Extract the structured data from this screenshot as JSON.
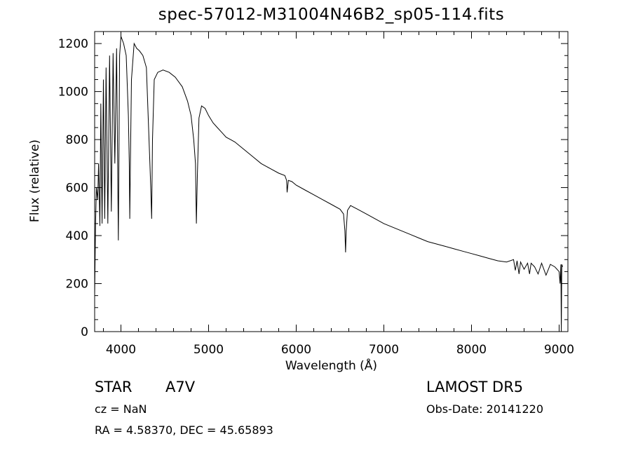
{
  "chart_data": {
    "type": "line",
    "title": "spec-57012-M31004N46B2_sp05-114.fits",
    "xlabel": "Wavelength (Å)",
    "ylabel": "Flux (relative)",
    "xlim": [
      3700,
      9100
    ],
    "ylim": [
      0,
      1250
    ],
    "xticks": [
      4000,
      5000,
      6000,
      7000,
      8000,
      9000
    ],
    "yticks": [
      0,
      200,
      400,
      600,
      800,
      1000,
      1200
    ],
    "xtick_labels": [
      "4000",
      "5000",
      "6000",
      "7000",
      "8000",
      "9000"
    ],
    "ytick_labels": [
      "0",
      "200",
      "400",
      "600",
      "800",
      "1000",
      "1200"
    ],
    "grid": false,
    "color": "#000000",
    "series": [
      {
        "x": [
          3700,
          3710,
          3720,
          3735,
          3745,
          3760,
          3770,
          3785,
          3800,
          3815,
          3830,
          3850,
          3870,
          3890,
          3910,
          3930,
          3950,
          3970,
          3985,
          4000,
          4010,
          4030,
          4060,
          4085,
          4095,
          4101,
          4108,
          4120,
          4150,
          4180,
          4210,
          4250,
          4290,
          4310,
          4330,
          4340,
          4350,
          4360,
          4380,
          4420,
          4480,
          4550,
          4620,
          4700,
          4760,
          4800,
          4830,
          4850,
          4861,
          4872,
          4890,
          4920,
          4960,
          5000,
          5050,
          5100,
          5150,
          5200,
          5250,
          5300,
          5400,
          5500,
          5600,
          5700,
          5800,
          5870,
          5890,
          5896,
          5910,
          5950,
          6000,
          6100,
          6200,
          6300,
          6400,
          6500,
          6540,
          6555,
          6563,
          6570,
          6585,
          6620,
          6700,
          6800,
          6900,
          7000,
          7100,
          7200,
          7300,
          7400,
          7500,
          7600,
          7700,
          7800,
          7900,
          8000,
          8100,
          8200,
          8300,
          8400,
          8480,
          8500,
          8520,
          8542,
          8560,
          8600,
          8640,
          8662,
          8680,
          8720,
          8760,
          8800,
          8850,
          8900,
          8950,
          9000,
          9010,
          9020,
          9025,
          9030,
          9040
        ],
        "y": [
          150,
          450,
          600,
          550,
          700,
          440,
          950,
          450,
          1050,
          470,
          1100,
          450,
          1150,
          500,
          1160,
          700,
          1180,
          380,
          1150,
          1230,
          1220,
          1200,
          1150,
          900,
          700,
          470,
          700,
          1050,
          1200,
          1180,
          1170,
          1150,
          1100,
          900,
          700,
          600,
          470,
          800,
          1050,
          1080,
          1090,
          1080,
          1060,
          1020,
          960,
          900,
          800,
          700,
          450,
          650,
          890,
          940,
          930,
          900,
          870,
          850,
          830,
          810,
          800,
          790,
          760,
          730,
          700,
          680,
          660,
          650,
          630,
          580,
          630,
          625,
          610,
          590,
          570,
          550,
          530,
          510,
          490,
          420,
          330,
          420,
          505,
          525,
          510,
          490,
          470,
          450,
          435,
          420,
          405,
          390,
          375,
          365,
          355,
          345,
          335,
          325,
          315,
          305,
          295,
          290,
          300,
          255,
          295,
          240,
          290,
          260,
          285,
          240,
          285,
          270,
          240,
          285,
          235,
          280,
          270,
          250,
          200,
          280,
          0,
          280,
          270
        ]
      }
    ],
    "annotations": {
      "object_class": "STAR",
      "subclass": "A7V",
      "survey": "LAMOST  DR5",
      "redshift": "cz = NaN",
      "obs_date": "Obs-Date: 20141220",
      "coords": "RA =    4.58370, DEC =   45.65893"
    }
  }
}
